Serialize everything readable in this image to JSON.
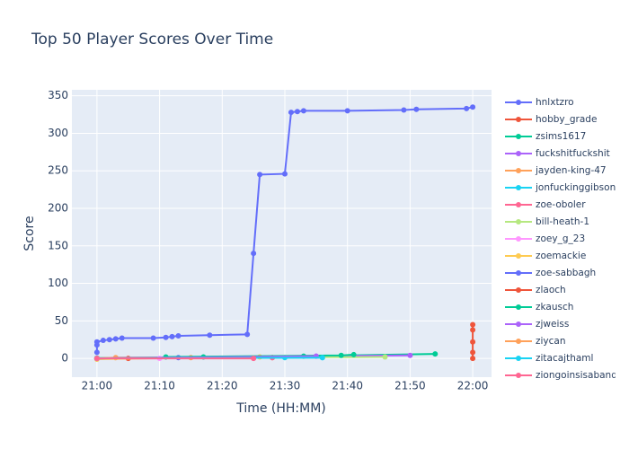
{
  "chart_data": {
    "type": "line",
    "title": "Top 50 Player Scores Over Time",
    "x_label": "Time (HH:MM)",
    "y_label": "Score",
    "xlim": [
      "20:56",
      "22:03"
    ],
    "ylim": [
      -25,
      358
    ],
    "xticks": [
      "21:00",
      "21:10",
      "21:20",
      "21:30",
      "21:40",
      "21:50",
      "22:00"
    ],
    "yticks": [
      0,
      50,
      100,
      150,
      200,
      250,
      300,
      350
    ],
    "grid": true,
    "legend": "right",
    "series": [
      {
        "name": "hnlxtzro",
        "color": "#636efa",
        "x": [
          "21:00",
          "21:00",
          "21:00",
          "21:01",
          "21:02",
          "21:03",
          "21:04",
          "21:09",
          "21:11",
          "21:12",
          "21:13",
          "21:18",
          "21:24",
          "21:25",
          "21:26",
          "21:30",
          "21:31",
          "21:32",
          "21:33",
          "21:40",
          "21:49",
          "21:51",
          "21:59",
          "22:00"
        ],
        "values": [
          8,
          18,
          22,
          24,
          25,
          26,
          27,
          27,
          28,
          29,
          30,
          31,
          32,
          140,
          245,
          246,
          328,
          329,
          330,
          330,
          331,
          332,
          333,
          335
        ]
      },
      {
        "name": "hobby_grade",
        "color": "#EF553B",
        "x": [
          "21:00",
          "21:05",
          "21:28"
        ],
        "values": [
          0,
          0,
          1
        ]
      },
      {
        "name": "zsims1617",
        "color": "#00cc96",
        "x": [
          "21:00",
          "21:17",
          "21:33",
          "21:54"
        ],
        "values": [
          0.5,
          2,
          3,
          6
        ]
      },
      {
        "name": "fuckshitfuckshit",
        "color": "#ab63fa",
        "x": [
          "21:00",
          "21:35",
          "21:50"
        ],
        "values": [
          0,
          3,
          4
        ]
      },
      {
        "name": "jayden-king-47",
        "color": "#FFA15A",
        "x": [
          "21:00",
          "21:03",
          "21:15"
        ],
        "values": [
          0,
          1,
          1
        ]
      },
      {
        "name": "jonfuckinggibson",
        "color": "#19d3f3",
        "x": [
          "21:00",
          "21:30",
          "21:36"
        ],
        "values": [
          0,
          1,
          1
        ]
      },
      {
        "name": "zoe-oboler",
        "color": "#FF6692",
        "x": [
          "21:00",
          "21:28"
        ],
        "values": [
          0,
          1
        ]
      },
      {
        "name": "bill-heath-1",
        "color": "#B6E880",
        "x": [
          "21:00",
          "21:46"
        ],
        "values": [
          0,
          2
        ]
      },
      {
        "name": "zoey_g_23",
        "color": "#FF97FF",
        "x": [
          "21:00",
          "21:10"
        ],
        "values": [
          0,
          0
        ]
      },
      {
        "name": "zoemackie",
        "color": "#FECB52",
        "x": [
          "21:00",
          "21:26"
        ],
        "values": [
          -1,
          2
        ]
      },
      {
        "name": "zoe-sabbagh",
        "color": "#636efa",
        "x": [
          "21:00",
          "21:13"
        ],
        "values": [
          0,
          1
        ]
      },
      {
        "name": "zlaoch",
        "color": "#EF553B",
        "x": [
          "22:00",
          "22:00",
          "22:00",
          "22:00",
          "22:00"
        ],
        "values": [
          0,
          8,
          22,
          38,
          45
        ]
      },
      {
        "name": "zkausch",
        "color": "#00cc96",
        "x": [
          "21:11",
          "21:39",
          "21:41"
        ],
        "values": [
          2,
          4,
          5
        ]
      },
      {
        "name": "zjweiss",
        "color": "#ab63fa",
        "x": [
          "21:00",
          "21:35"
        ],
        "values": [
          0,
          3
        ]
      },
      {
        "name": "ziycan",
        "color": "#FFA15A",
        "x": [
          "21:00"
        ],
        "values": [
          0
        ]
      },
      {
        "name": "zitacajthaml",
        "color": "#19d3f3",
        "x": [
          "21:00",
          "21:36"
        ],
        "values": [
          0,
          1
        ]
      },
      {
        "name": "ziongoinsisaband",
        "color": "#FF6692",
        "x": [
          "21:00",
          "21:25"
        ],
        "values": [
          0,
          0
        ]
      }
    ]
  }
}
